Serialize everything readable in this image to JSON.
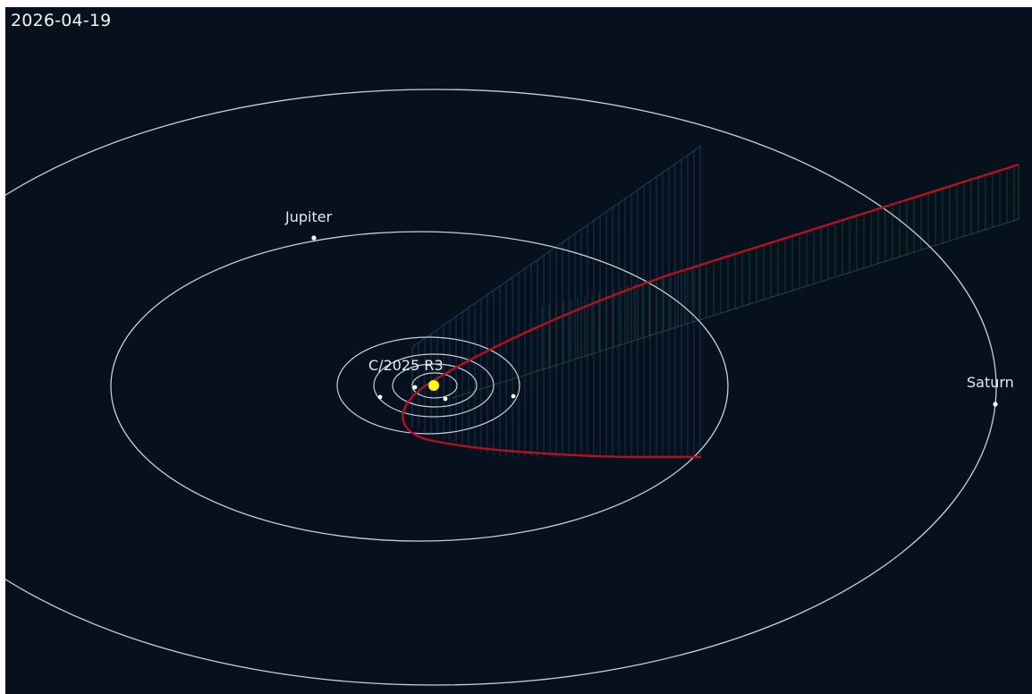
{
  "date": "2026-04-19",
  "bodies": {
    "jupiter": "Jupiter",
    "saturn": "Saturn",
    "comet": "C/2025 R3"
  },
  "colors": {
    "background": "#06111d",
    "orbit": "#c8d0d8",
    "comet_path": "#b5101c",
    "sun": "#ffff00",
    "hatch_below": "#1f4a70",
    "hatch_above": "#1f5a3a"
  }
}
